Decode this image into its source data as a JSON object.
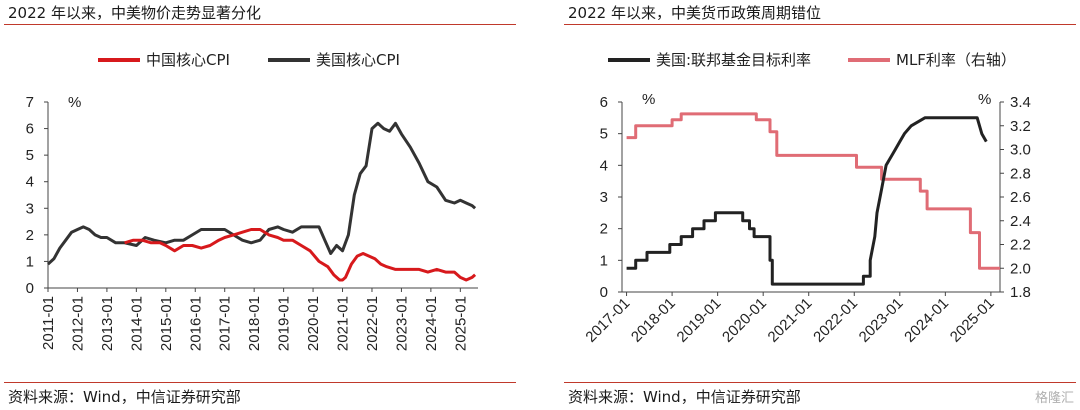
{
  "left": {
    "title": "2022 年以来，中美物价走势显著分化",
    "source": "资料来源：Wind，中信证券研究部"
  },
  "right": {
    "title": "2022 年以来，中美货币政策周期错位",
    "source": "资料来源：Wind，中信证券研究部"
  },
  "watermark": "格隆汇",
  "chart_data": [
    {
      "type": "line",
      "title": "2022 年以来，中美物价走势显著分化",
      "ylabel": "%",
      "ylim": [
        0,
        7
      ],
      "xlim": [
        2011.0,
        2025.6
      ],
      "y_ticks": [
        0,
        1,
        2,
        3,
        4,
        5,
        6,
        7
      ],
      "x_ticks": [
        {
          "label": "2011-01",
          "x": 2011.0
        },
        {
          "label": "2012-01",
          "x": 2012.0
        },
        {
          "label": "2013-01",
          "x": 2013.0
        },
        {
          "label": "2014-01",
          "x": 2014.0
        },
        {
          "label": "2015-01",
          "x": 2015.0
        },
        {
          "label": "2016-01",
          "x": 2016.0
        },
        {
          "label": "2017-01",
          "x": 2017.0
        },
        {
          "label": "2018-01",
          "x": 2018.0
        },
        {
          "label": "2019-01",
          "x": 2019.0
        },
        {
          "label": "2020-01",
          "x": 2020.0
        },
        {
          "label": "2021-01",
          "x": 2021.0
        },
        {
          "label": "2022-01",
          "x": 2022.0
        },
        {
          "label": "2023-01",
          "x": 2023.0
        },
        {
          "label": "2024-01",
          "x": 2024.0
        },
        {
          "label": "2025-01",
          "x": 2025.0
        }
      ],
      "legend_position": "top",
      "series": [
        {
          "name": "中国核心CPI",
          "color": "#d7191c",
          "x": [
            2013.6,
            2013.9,
            2014.2,
            2014.5,
            2014.8,
            2015.0,
            2015.3,
            2015.6,
            2015.9,
            2016.2,
            2016.5,
            2016.8,
            2017.0,
            2017.3,
            2017.6,
            2017.9,
            2018.2,
            2018.5,
            2018.8,
            2019.0,
            2019.3,
            2019.6,
            2019.9,
            2020.2,
            2020.5,
            2020.7,
            2020.9,
            2021.0,
            2021.1,
            2021.3,
            2021.5,
            2021.7,
            2021.9,
            2022.1,
            2022.3,
            2022.5,
            2022.8,
            2023.0,
            2023.3,
            2023.6,
            2023.9,
            2024.2,
            2024.5,
            2024.8,
            2025.0,
            2025.2,
            2025.4,
            2025.5
          ],
          "y": [
            1.7,
            1.8,
            1.8,
            1.7,
            1.7,
            1.6,
            1.4,
            1.6,
            1.6,
            1.5,
            1.6,
            1.8,
            1.9,
            2.0,
            2.1,
            2.2,
            2.2,
            2.0,
            1.9,
            1.8,
            1.8,
            1.6,
            1.4,
            1.0,
            0.8,
            0.5,
            0.3,
            0.3,
            0.4,
            0.9,
            1.2,
            1.3,
            1.2,
            1.1,
            0.9,
            0.8,
            0.7,
            0.7,
            0.7,
            0.7,
            0.6,
            0.7,
            0.6,
            0.6,
            0.4,
            0.3,
            0.4,
            0.5
          ]
        },
        {
          "name": "美国核心CPI",
          "color": "#333333",
          "x": [
            2011.0,
            2011.2,
            2011.4,
            2011.6,
            2011.8,
            2012.0,
            2012.2,
            2012.4,
            2012.6,
            2012.8,
            2013.0,
            2013.3,
            2013.6,
            2014.0,
            2014.3,
            2014.6,
            2015.0,
            2015.3,
            2015.6,
            2015.9,
            2016.2,
            2016.5,
            2016.8,
            2017.0,
            2017.3,
            2017.6,
            2017.9,
            2018.2,
            2018.5,
            2018.8,
            2019.0,
            2019.3,
            2019.6,
            2019.9,
            2020.2,
            2020.4,
            2020.6,
            2020.8,
            2021.0,
            2021.2,
            2021.4,
            2021.6,
            2021.8,
            2022.0,
            2022.2,
            2022.4,
            2022.6,
            2022.8,
            2023.0,
            2023.3,
            2023.6,
            2023.9,
            2024.2,
            2024.5,
            2024.8,
            2025.0,
            2025.2,
            2025.4,
            2025.5
          ],
          "y": [
            0.9,
            1.1,
            1.5,
            1.8,
            2.1,
            2.2,
            2.3,
            2.2,
            2.0,
            1.9,
            1.9,
            1.7,
            1.7,
            1.6,
            1.9,
            1.8,
            1.7,
            1.8,
            1.8,
            2.0,
            2.2,
            2.2,
            2.2,
            2.2,
            2.0,
            1.8,
            1.7,
            1.8,
            2.2,
            2.3,
            2.2,
            2.1,
            2.3,
            2.3,
            2.3,
            1.8,
            1.3,
            1.6,
            1.4,
            2.0,
            3.5,
            4.3,
            4.6,
            6.0,
            6.2,
            6.0,
            5.9,
            6.2,
            5.8,
            5.3,
            4.7,
            4.0,
            3.8,
            3.3,
            3.2,
            3.3,
            3.2,
            3.1,
            3.0
          ]
        }
      ]
    },
    {
      "type": "line",
      "title": "2022 年以来，中美货币政策周期错位",
      "ylabel": "%",
      "y2label": "%",
      "ylim": [
        0,
        6
      ],
      "y2lim": [
        1.8,
        3.4
      ],
      "xlim": [
        2016.9,
        2025.2
      ],
      "y_ticks": [
        0,
        1,
        2,
        3,
        4,
        5,
        6
      ],
      "y2_ticks": [
        1.8,
        2.0,
        2.2,
        2.4,
        2.6,
        2.8,
        3.0,
        3.2,
        3.4
      ],
      "x_ticks": [
        {
          "label": "2017-01",
          "x": 2017.0
        },
        {
          "label": "2018-01",
          "x": 2018.0
        },
        {
          "label": "2019-01",
          "x": 2019.0
        },
        {
          "label": "2020-01",
          "x": 2020.0
        },
        {
          "label": "2021-01",
          "x": 2021.0
        },
        {
          "label": "2022-01",
          "x": 2022.0
        },
        {
          "label": "2023-01",
          "x": 2023.0
        },
        {
          "label": "2024-01",
          "x": 2024.0
        },
        {
          "label": "2025-01",
          "x": 2025.0
        }
      ],
      "legend_position": "top",
      "series": [
        {
          "name": "美国:联邦基金目标利率",
          "axis": "left",
          "color": "#222222",
          "x": [
            2017.0,
            2017.2,
            2017.2,
            2017.45,
            2017.45,
            2017.95,
            2017.95,
            2018.2,
            2018.2,
            2018.45,
            2018.45,
            2018.7,
            2018.7,
            2018.95,
            2018.95,
            2019.55,
            2019.55,
            2019.7,
            2019.7,
            2019.8,
            2019.8,
            2020.15,
            2020.15,
            2020.2,
            2020.2,
            2022.2,
            2022.2,
            2022.35,
            2022.35,
            2022.45,
            2022.5,
            2022.6,
            2022.7,
            2022.9,
            2023.0,
            2023.1,
            2023.25,
            2023.55,
            2024.7,
            2024.8,
            2024.9
          ],
          "y": [
            0.75,
            0.75,
            1.0,
            1.0,
            1.25,
            1.25,
            1.5,
            1.5,
            1.75,
            1.75,
            2.0,
            2.0,
            2.25,
            2.25,
            2.5,
            2.5,
            2.25,
            2.25,
            2.0,
            2.0,
            1.75,
            1.75,
            1.0,
            1.0,
            0.25,
            0.25,
            0.5,
            0.5,
            1.0,
            1.75,
            2.5,
            3.25,
            4.0,
            4.5,
            4.75,
            5.0,
            5.25,
            5.5,
            5.5,
            5.0,
            4.75
          ]
        },
        {
          "name": "MLF利率（右轴）",
          "axis": "right",
          "color": "#e06c75",
          "x": [
            2017.0,
            2017.05,
            2017.05,
            2017.2,
            2017.2,
            2017.8,
            2017.8,
            2018.0,
            2018.0,
            2018.2,
            2018.2,
            2019.6,
            2019.6,
            2019.85,
            2019.85,
            2019.95,
            2019.95,
            2020.15,
            2020.15,
            2020.3,
            2020.3,
            2021.9,
            2021.9,
            2022.05,
            2022.05,
            2022.6,
            2022.6,
            2023.1,
            2023.1,
            2023.45,
            2023.45,
            2023.6,
            2023.6,
            2024.55,
            2024.55,
            2024.75,
            2024.75,
            2025.2
          ],
          "y": [
            3.1,
            3.1,
            3.1,
            3.1,
            3.2,
            3.2,
            3.2,
            3.2,
            3.25,
            3.25,
            3.3,
            3.3,
            3.3,
            3.3,
            3.25,
            3.25,
            3.25,
            3.25,
            3.15,
            3.15,
            2.95,
            2.95,
            2.95,
            2.95,
            2.85,
            2.85,
            2.75,
            2.75,
            2.75,
            2.75,
            2.65,
            2.65,
            2.5,
            2.5,
            2.3,
            2.3,
            2.0,
            2.0
          ]
        }
      ]
    }
  ]
}
